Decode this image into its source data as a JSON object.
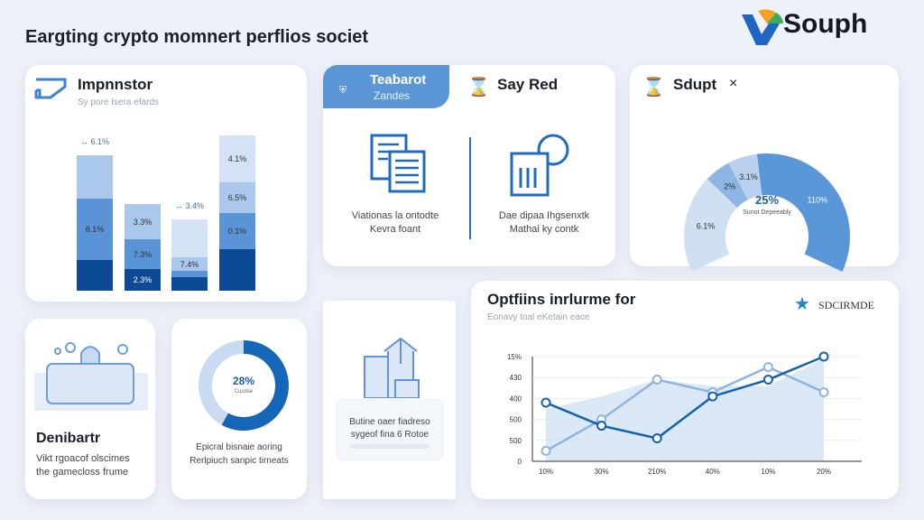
{
  "header": {
    "title": "Eargting crypto momnert perflios societ",
    "logo_text": "Souph"
  },
  "card_bars": {
    "title": "Impnnstor",
    "subtitle": "Sy pore tsera efards",
    "top_labels": [
      "6.1%",
      "",
      "3.4%",
      ""
    ],
    "bars": [
      {
        "segments": [
          34,
          68,
          48
        ],
        "labels": [
          "",
          "8.1%",
          ""
        ]
      },
      {
        "segments": [
          24,
          33,
          39
        ],
        "labels": [
          "2.3%",
          "7.3%",
          "3.3%"
        ]
      },
      {
        "segments": [
          15,
          7,
          15,
          42
        ],
        "labels": [
          "",
          "",
          "7.4%",
          ""
        ]
      },
      {
        "segments": [
          46,
          40,
          34,
          52
        ],
        "labels": [
          "",
          "0.1%",
          "6.5%",
          "4.1%"
        ]
      }
    ],
    "colors": [
      "#0d4a96",
      "#5b94d6",
      "#a9c8ec",
      "#d3e2f4"
    ]
  },
  "card_tabs": {
    "tab_active": "Teabarot",
    "tab_active_sub": "Zandes",
    "tab2": "Say Red",
    "item1_text": [
      "Viationas la ontodte",
      "Kevra foant"
    ],
    "item2_text": [
      "Dae dipaa Ihgsenxtk",
      "Mathai ky contk"
    ]
  },
  "card_donut": {
    "title": "Sdupt",
    "close": "×",
    "center_value": "25%",
    "center_label": "Sunot Depeeably",
    "slices": [
      {
        "label": "6.1%",
        "value": 30,
        "color": "#cfe0f3"
      },
      {
        "label": "2%",
        "value": 8,
        "color": "#8db6e4"
      },
      {
        "label": "3.1%",
        "value": 9,
        "color": "#b9d1ee"
      },
      {
        "label": "110%",
        "value": 53,
        "color": "#5a97d8"
      }
    ]
  },
  "card_dev": {
    "title": "Denibartr",
    "text": [
      "Vikt rgoacof olscimes",
      "the gamecloss frume"
    ]
  },
  "card_ring": {
    "value": "28%",
    "label": "Cucdse",
    "fill": 0.58,
    "text": [
      "Epicral bisnaie aoring",
      "Rerlpiuch sanpic tirneats"
    ]
  },
  "card_build": {
    "text": [
      "Butine oaer fiadreso",
      "sygeof fina 6 Rotoe"
    ]
  },
  "chart_data": {
    "type": "line",
    "title": "Optfiins inrlurme for",
    "subtitle": "Eonavy toal eKetain eace",
    "badge": "SDCIRMDE",
    "y_ticks": [
      "0",
      "500",
      "500",
      "400",
      "430",
      "15%"
    ],
    "x_ticks": [
      "10%",
      "30%",
      "210%",
      "40%",
      "10%",
      "20%"
    ],
    "series": [
      {
        "values": [
          2.8,
          1.7,
          1.1,
          3.1,
          3.9,
          5.0
        ],
        "color": "#1560b0"
      },
      {
        "values": [
          0.5,
          2.0,
          3.9,
          3.3,
          4.5,
          3.3
        ],
        "color": "#8fb4e0"
      }
    ],
    "area": [
      2.5,
      3.1,
      3.9,
      3.6,
      3.6,
      4.9
    ]
  }
}
